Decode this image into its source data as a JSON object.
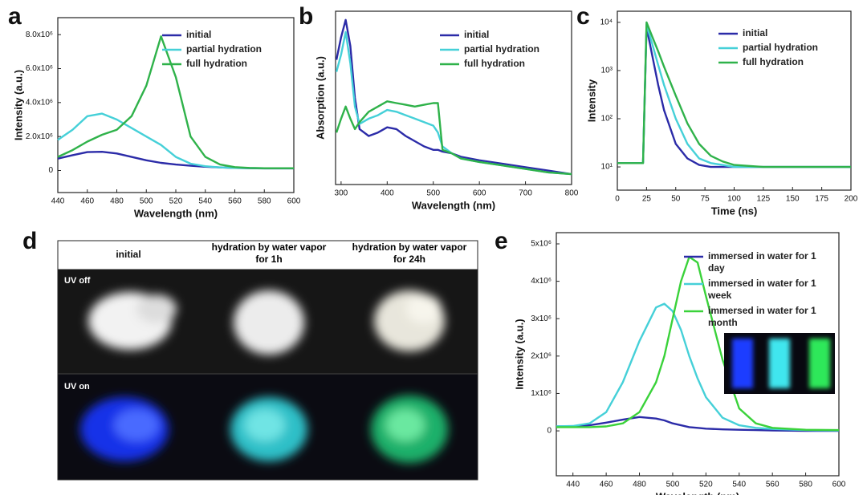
{
  "chart_data": [
    {
      "type": "line",
      "label": "a",
      "xlabel": "Wavelength (nm)",
      "ylabel": "Intensity (a.u.)",
      "x": [
        440,
        450,
        460,
        470,
        480,
        490,
        500,
        510,
        520,
        530,
        540,
        550,
        560,
        570,
        580,
        590,
        600
      ],
      "xlim": [
        440,
        600
      ],
      "xticks": [
        440,
        460,
        480,
        500,
        520,
        540,
        560,
        580,
        600
      ],
      "ylim": [
        -1300000,
        9000000
      ],
      "yticks": [
        0,
        {
          "value": 2000000,
          "label": "2.0x10⁶"
        },
        {
          "value": 4000000,
          "label": "4.0x10⁶"
        },
        {
          "value": 6000000,
          "label": "6.0x10⁶"
        },
        {
          "value": 8000000,
          "label": "8.0x10⁶"
        }
      ],
      "legend": "upper right",
      "series": [
        {
          "name": "initial",
          "color": "#2b2ba8",
          "values": [
            700000,
            900000,
            1080000,
            1100000,
            1000000,
            800000,
            600000,
            450000,
            350000,
            280000,
            220000,
            180000,
            150000,
            130000,
            120000,
            120000,
            120000
          ]
        },
        {
          "name": "partial hydration",
          "color": "#45d0d8",
          "values": [
            1800000,
            2400000,
            3200000,
            3350000,
            3000000,
            2500000,
            2000000,
            1500000,
            800000,
            400000,
            250000,
            180000,
            150000,
            140000,
            130000,
            130000,
            130000
          ]
        },
        {
          "name": "full hydration",
          "color": "#2fb24a",
          "values": [
            800000,
            1200000,
            1700000,
            2100000,
            2400000,
            3200000,
            5000000,
            7900000,
            5500000,
            2000000,
            800000,
            350000,
            200000,
            150000,
            130000,
            130000,
            130000
          ]
        }
      ]
    },
    {
      "type": "line",
      "label": "b",
      "xlabel": "Wavelength (nm)",
      "ylabel": "Absorption (a.u.)",
      "x": [
        290,
        300,
        310,
        320,
        330,
        340,
        360,
        380,
        400,
        420,
        440,
        460,
        480,
        500,
        510,
        520,
        540,
        560,
        600,
        650,
        700,
        750,
        800
      ],
      "xlim": [
        288,
        800
      ],
      "xticks": [
        300,
        400,
        500,
        600,
        700,
        800
      ],
      "ylim": [
        0,
        1
      ],
      "legend": "upper right",
      "series": [
        {
          "name": "initial",
          "color": "#2b2ba8",
          "values": [
            0.72,
            0.85,
            0.95,
            0.8,
            0.5,
            0.32,
            0.28,
            0.3,
            0.33,
            0.32,
            0.28,
            0.25,
            0.22,
            0.2,
            0.2,
            0.19,
            0.18,
            0.16,
            0.14,
            0.12,
            0.1,
            0.08,
            0.06
          ]
        },
        {
          "name": "partial hydration",
          "color": "#45d0d8",
          "values": [
            0.65,
            0.75,
            0.88,
            0.7,
            0.45,
            0.35,
            0.38,
            0.4,
            0.43,
            0.42,
            0.4,
            0.38,
            0.36,
            0.34,
            0.3,
            0.22,
            0.18,
            0.15,
            0.13,
            0.11,
            0.09,
            0.07,
            0.06
          ]
        },
        {
          "name": "full hydration",
          "color": "#2fb24a",
          "values": [
            0.3,
            0.38,
            0.45,
            0.38,
            0.32,
            0.36,
            0.42,
            0.45,
            0.48,
            0.47,
            0.46,
            0.45,
            0.46,
            0.47,
            0.47,
            0.2,
            0.18,
            0.15,
            0.13,
            0.11,
            0.09,
            0.07,
            0.06
          ]
        }
      ]
    },
    {
      "type": "line",
      "label": "c",
      "xlabel": "Time (ns)",
      "ylabel": "Intensity",
      "log_y": true,
      "x": [
        0,
        10,
        20,
        22,
        25,
        30,
        35,
        40,
        50,
        60,
        70,
        80,
        90,
        100,
        125,
        150,
        175,
        200
      ],
      "xlim": [
        0,
        200
      ],
      "xticks": [
        0,
        25,
        50,
        75,
        100,
        125,
        150,
        175,
        200
      ],
      "ylim": [
        3.3,
        17000
      ],
      "yticks": [
        {
          "value": 10,
          "label": "10¹"
        },
        {
          "value": 100,
          "label": "10²"
        },
        {
          "value": 1000,
          "label": "10³"
        },
        {
          "value": 10000,
          "label": "10⁴"
        }
      ],
      "legend": "upper right",
      "series": [
        {
          "name": "initial",
          "color": "#2b2ba8",
          "values": [
            12,
            12,
            12,
            12,
            8000,
            2000,
            500,
            150,
            30,
            15,
            11,
            10,
            10,
            10,
            10,
            10,
            10,
            10
          ]
        },
        {
          "name": "partial hydration",
          "color": "#45d0d8",
          "values": [
            12,
            12,
            12,
            12,
            9000,
            3500,
            1300,
            500,
            100,
            30,
            15,
            12,
            11,
            10,
            10,
            10,
            10,
            10
          ]
        },
        {
          "name": "full hydration",
          "color": "#2fb24a",
          "values": [
            12,
            12,
            12,
            12,
            10000,
            5000,
            2500,
            1200,
            300,
            80,
            30,
            17,
            13,
            11,
            10,
            10,
            10,
            10
          ]
        }
      ]
    },
    {
      "type": "line",
      "label": "e",
      "xlabel": "Wavelength (nm)",
      "ylabel": "Intensity (a.u.)",
      "x": [
        430,
        440,
        450,
        460,
        470,
        480,
        490,
        495,
        500,
        505,
        510,
        515,
        520,
        530,
        540,
        550,
        560,
        580,
        600
      ],
      "xlim": [
        430,
        600
      ],
      "xticks": [
        440,
        460,
        480,
        500,
        520,
        540,
        560,
        580,
        600
      ],
      "ylim": [
        -1200000,
        5300000
      ],
      "yticks": [
        0,
        {
          "value": 1000000,
          "label": "1x10⁶"
        },
        {
          "value": 2000000,
          "label": "2x10⁶"
        },
        {
          "value": 3000000,
          "label": "3x10⁶"
        },
        {
          "value": 4000000,
          "label": "4x10⁶"
        },
        {
          "value": 5000000,
          "label": "5x10⁶"
        }
      ],
      "legend": "upper right",
      "series": [
        {
          "name": "immersed in water for 1 day",
          "color": "#2b2ba8",
          "values": [
            120000,
            120000,
            150000,
            220000,
            300000,
            370000,
            330000,
            280000,
            200000,
            150000,
            100000,
            80000,
            60000,
            40000,
            30000,
            20000,
            10000,
            0,
            0
          ]
        },
        {
          "name": "immersed in water for 1 week",
          "color": "#45d0d8",
          "values": [
            120000,
            130000,
            200000,
            500000,
            1300000,
            2400000,
            3300000,
            3400000,
            3200000,
            2700000,
            2000000,
            1400000,
            900000,
            350000,
            150000,
            80000,
            50000,
            20000,
            10000
          ]
        },
        {
          "name": "immersed in water for 1 month",
          "color": "#3ad23a",
          "values": [
            100000,
            100000,
            100000,
            120000,
            200000,
            500000,
            1300000,
            2000000,
            3000000,
            4000000,
            4650000,
            4500000,
            3600000,
            1900000,
            600000,
            200000,
            80000,
            30000,
            20000
          ]
        }
      ]
    }
  ],
  "photos": {
    "label": "d",
    "columns": [
      "initial",
      "hydration by water vapor for 1h",
      "hydration by water vapor for 24h"
    ],
    "rows": [
      "UV off",
      "UV on"
    ]
  }
}
